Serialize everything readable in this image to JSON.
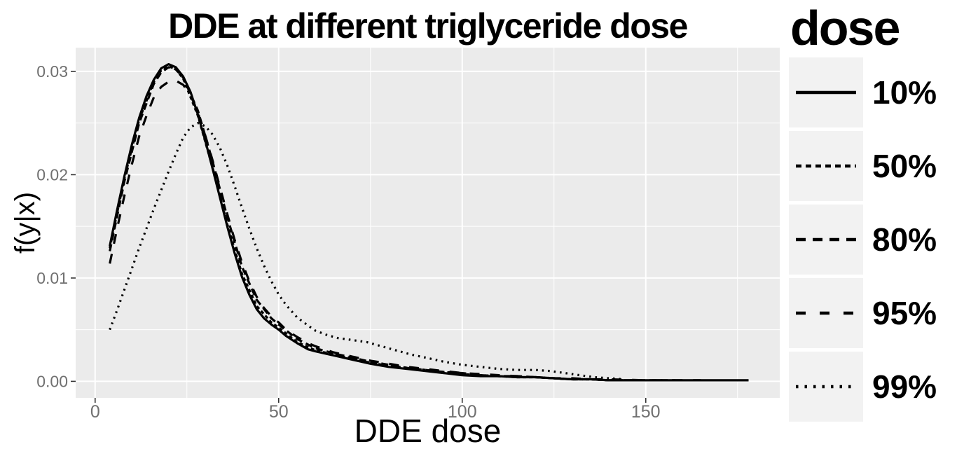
{
  "title": "DDE at different triglyceride dose",
  "chart_data": {
    "type": "line",
    "title": "DDE at different triglyceride dose",
    "xlabel": "DDE dose",
    "ylabel": "f(y|x)",
    "grid": true,
    "xlim": [
      -5.3,
      186.5
    ],
    "ylim": [
      -0.0016,
      0.0323
    ],
    "x_ticks": {
      "values": [
        0,
        50,
        100,
        150
      ],
      "labels": [
        "0",
        "50",
        "100",
        "150"
      ]
    },
    "x_minor": [
      25,
      75,
      125,
      175
    ],
    "y_ticks": {
      "values": [
        0,
        0.01,
        0.02,
        0.03
      ],
      "labels": [
        "0.00",
        "0.01",
        "0.02",
        "0.03"
      ]
    },
    "y_minor": [
      0.005,
      0.015,
      0.025
    ],
    "colors": {
      "panel": "#EBEBEB",
      "grid": "#FFFFFF",
      "legend_key": "#F2F2F2",
      "tick_label": "#707070",
      "tick_mark": "#333333",
      "line": "#000000"
    },
    "legend": {
      "title": "dose",
      "position": "right",
      "entries": [
        "10%",
        "50%",
        "80%",
        "95%",
        "99%"
      ]
    },
    "series": [
      {
        "name": "10%",
        "linetype": "solid",
        "dash": "",
        "legend_dash": "",
        "points": [
          [
            4,
            0.0131
          ],
          [
            6,
            0.0166
          ],
          [
            8,
            0.0199
          ],
          [
            10,
            0.0229
          ],
          [
            12,
            0.0255
          ],
          [
            14,
            0.0276
          ],
          [
            16,
            0.0292
          ],
          [
            18,
            0.0303
          ],
          [
            20,
            0.0307
          ],
          [
            22,
            0.0304
          ],
          [
            24,
            0.0295
          ],
          [
            26,
            0.028
          ],
          [
            28,
            0.0258
          ],
          [
            30,
            0.0233
          ],
          [
            32,
            0.0206
          ],
          [
            34,
            0.0178
          ],
          [
            36,
            0.015
          ],
          [
            38,
            0.0124
          ],
          [
            40,
            0.0101
          ],
          [
            42,
            0.0084
          ],
          [
            44,
            0.007
          ],
          [
            46,
            0.0061
          ],
          [
            48,
            0.0055
          ],
          [
            50,
            0.005
          ],
          [
            52,
            0.0044
          ],
          [
            55,
            0.0037
          ],
          [
            58,
            0.0031
          ],
          [
            60,
            0.0029
          ],
          [
            65,
            0.0025
          ],
          [
            70,
            0.0021
          ],
          [
            75,
            0.0017
          ],
          [
            80,
            0.0014
          ],
          [
            85,
            0.0012
          ],
          [
            90,
            0.001
          ],
          [
            95,
            0.0008
          ],
          [
            100,
            0.0006
          ],
          [
            105,
            0.0005
          ],
          [
            110,
            0.0005
          ],
          [
            115,
            0.0004
          ],
          [
            120,
            0.0004
          ],
          [
            125,
            0.0003
          ],
          [
            130,
            0.0002
          ],
          [
            135,
            0.0002
          ],
          [
            140,
            0.0001
          ],
          [
            150,
            0.0001
          ],
          [
            160,
            0.0001
          ],
          [
            170,
            0.0001
          ],
          [
            178,
            0.0001
          ]
        ]
      },
      {
        "name": "50%",
        "linetype": "short-dash",
        "dash": "5 4",
        "legend_dash": "8 6",
        "points": [
          [
            4,
            0.0129
          ],
          [
            8,
            0.0197
          ],
          [
            12,
            0.0253
          ],
          [
            16,
            0.029
          ],
          [
            18,
            0.0301
          ],
          [
            20,
            0.0305
          ],
          [
            22,
            0.0302
          ],
          [
            24,
            0.0293
          ],
          [
            28,
            0.0257
          ],
          [
            32,
            0.0207
          ],
          [
            36,
            0.0152
          ],
          [
            40,
            0.0104
          ],
          [
            44,
            0.0073
          ],
          [
            48,
            0.0057
          ],
          [
            50,
            0.0052
          ],
          [
            55,
            0.0038
          ],
          [
            60,
            0.003
          ],
          [
            65,
            0.0026
          ],
          [
            70,
            0.0022
          ],
          [
            75,
            0.0018
          ],
          [
            80,
            0.0015
          ],
          [
            85,
            0.0013
          ],
          [
            90,
            0.0011
          ],
          [
            95,
            0.0009
          ],
          [
            100,
            0.0007
          ],
          [
            105,
            0.0006
          ],
          [
            110,
            0.0005
          ],
          [
            115,
            0.0004
          ],
          [
            120,
            0.0004
          ],
          [
            125,
            0.0003
          ],
          [
            130,
            0.0002
          ],
          [
            135,
            0.0002
          ],
          [
            140,
            0.0001
          ],
          [
            148,
            0.0001
          ]
        ]
      },
      {
        "name": "80%",
        "linetype": "dashed",
        "dash": "10 6",
        "legend_dash": "14 10",
        "points": [
          [
            4,
            0.0126
          ],
          [
            8,
            0.0194
          ],
          [
            12,
            0.025
          ],
          [
            16,
            0.0288
          ],
          [
            18,
            0.0299
          ],
          [
            20,
            0.0304
          ],
          [
            22,
            0.0302
          ],
          [
            24,
            0.0294
          ],
          [
            28,
            0.0262
          ],
          [
            32,
            0.0213
          ],
          [
            36,
            0.0159
          ],
          [
            40,
            0.0111
          ],
          [
            44,
            0.0079
          ],
          [
            48,
            0.0061
          ],
          [
            50,
            0.0055
          ],
          [
            55,
            0.0041
          ],
          [
            60,
            0.0032
          ],
          [
            65,
            0.0027
          ],
          [
            70,
            0.0023
          ],
          [
            75,
            0.0019
          ],
          [
            80,
            0.0016
          ],
          [
            85,
            0.0013
          ],
          [
            90,
            0.0011
          ],
          [
            95,
            0.0009
          ],
          [
            100,
            0.0008
          ],
          [
            105,
            0.0006
          ],
          [
            110,
            0.0005
          ],
          [
            115,
            0.0005
          ],
          [
            120,
            0.0004
          ],
          [
            125,
            0.0003
          ],
          [
            130,
            0.0002
          ],
          [
            135,
            0.0002
          ],
          [
            140,
            0.0001
          ],
          [
            150,
            0.0001
          ],
          [
            158,
            0.0001
          ]
        ]
      },
      {
        "name": "95%",
        "linetype": "long-dash",
        "dash": "14 15",
        "legend_dash": "14 20",
        "points": [
          [
            4,
            0.0114
          ],
          [
            6,
            0.0148
          ],
          [
            8,
            0.018
          ],
          [
            10,
            0.021
          ],
          [
            12,
            0.0237
          ],
          [
            14,
            0.0257
          ],
          [
            16,
            0.0275
          ],
          [
            18,
            0.0285
          ],
          [
            20,
            0.029
          ],
          [
            22,
            0.0291
          ],
          [
            24,
            0.0287
          ],
          [
            26,
            0.0277
          ],
          [
            28,
            0.026
          ],
          [
            30,
            0.0238
          ],
          [
            32,
            0.0214
          ],
          [
            34,
            0.0188
          ],
          [
            36,
            0.0162
          ],
          [
            38,
            0.0137
          ],
          [
            40,
            0.0115
          ],
          [
            42,
            0.0097
          ],
          [
            44,
            0.0082
          ],
          [
            46,
            0.0071
          ],
          [
            48,
            0.0063
          ],
          [
            50,
            0.0057
          ],
          [
            52,
            0.005
          ],
          [
            55,
            0.0043
          ],
          [
            58,
            0.0037
          ],
          [
            60,
            0.0034
          ],
          [
            65,
            0.0028
          ],
          [
            70,
            0.0024
          ],
          [
            75,
            0.002
          ],
          [
            80,
            0.0017
          ],
          [
            85,
            0.0014
          ],
          [
            90,
            0.0012
          ],
          [
            95,
            0.001
          ],
          [
            100,
            0.0008
          ],
          [
            105,
            0.0007
          ],
          [
            110,
            0.0006
          ],
          [
            115,
            0.0005
          ],
          [
            120,
            0.0004
          ],
          [
            125,
            0.0003
          ],
          [
            130,
            0.0003
          ],
          [
            135,
            0.0002
          ],
          [
            140,
            0.0002
          ],
          [
            150,
            0.0001
          ],
          [
            160,
            0.0001
          ],
          [
            165,
            0.0001
          ]
        ]
      },
      {
        "name": "99%",
        "linetype": "dotted",
        "dash": "2.5 6",
        "legend_dash": "3.5 9",
        "points": [
          [
            4,
            0.005
          ],
          [
            6,
            0.0069
          ],
          [
            8,
            0.0089
          ],
          [
            10,
            0.0109
          ],
          [
            12,
            0.0129
          ],
          [
            14,
            0.0148
          ],
          [
            16,
            0.0167
          ],
          [
            18,
            0.0185
          ],
          [
            20,
            0.0203
          ],
          [
            22,
            0.022
          ],
          [
            24,
            0.0236
          ],
          [
            26,
            0.0246
          ],
          [
            28,
            0.025
          ],
          [
            30,
            0.0247
          ],
          [
            32,
            0.0239
          ],
          [
            34,
            0.0226
          ],
          [
            36,
            0.0209
          ],
          [
            38,
            0.0189
          ],
          [
            40,
            0.0168
          ],
          [
            42,
            0.0148
          ],
          [
            44,
            0.0129
          ],
          [
            46,
            0.0112
          ],
          [
            48,
            0.0097
          ],
          [
            50,
            0.0084
          ],
          [
            52,
            0.0074
          ],
          [
            55,
            0.0062
          ],
          [
            58,
            0.0054
          ],
          [
            60,
            0.0049
          ],
          [
            63,
            0.0045
          ],
          [
            66,
            0.0042
          ],
          [
            70,
            0.004
          ],
          [
            74,
            0.0038
          ],
          [
            78,
            0.0034
          ],
          [
            82,
            0.003
          ],
          [
            86,
            0.0026
          ],
          [
            90,
            0.0023
          ],
          [
            95,
            0.0019
          ],
          [
            100,
            0.0016
          ],
          [
            105,
            0.0014
          ],
          [
            110,
            0.0012
          ],
          [
            115,
            0.0011
          ],
          [
            120,
            0.0011
          ],
          [
            124,
            0.001
          ],
          [
            128,
            0.0008
          ],
          [
            132,
            0.0006
          ],
          [
            136,
            0.0004
          ],
          [
            140,
            0.0003
          ],
          [
            144,
            0.0002
          ]
        ]
      }
    ]
  }
}
